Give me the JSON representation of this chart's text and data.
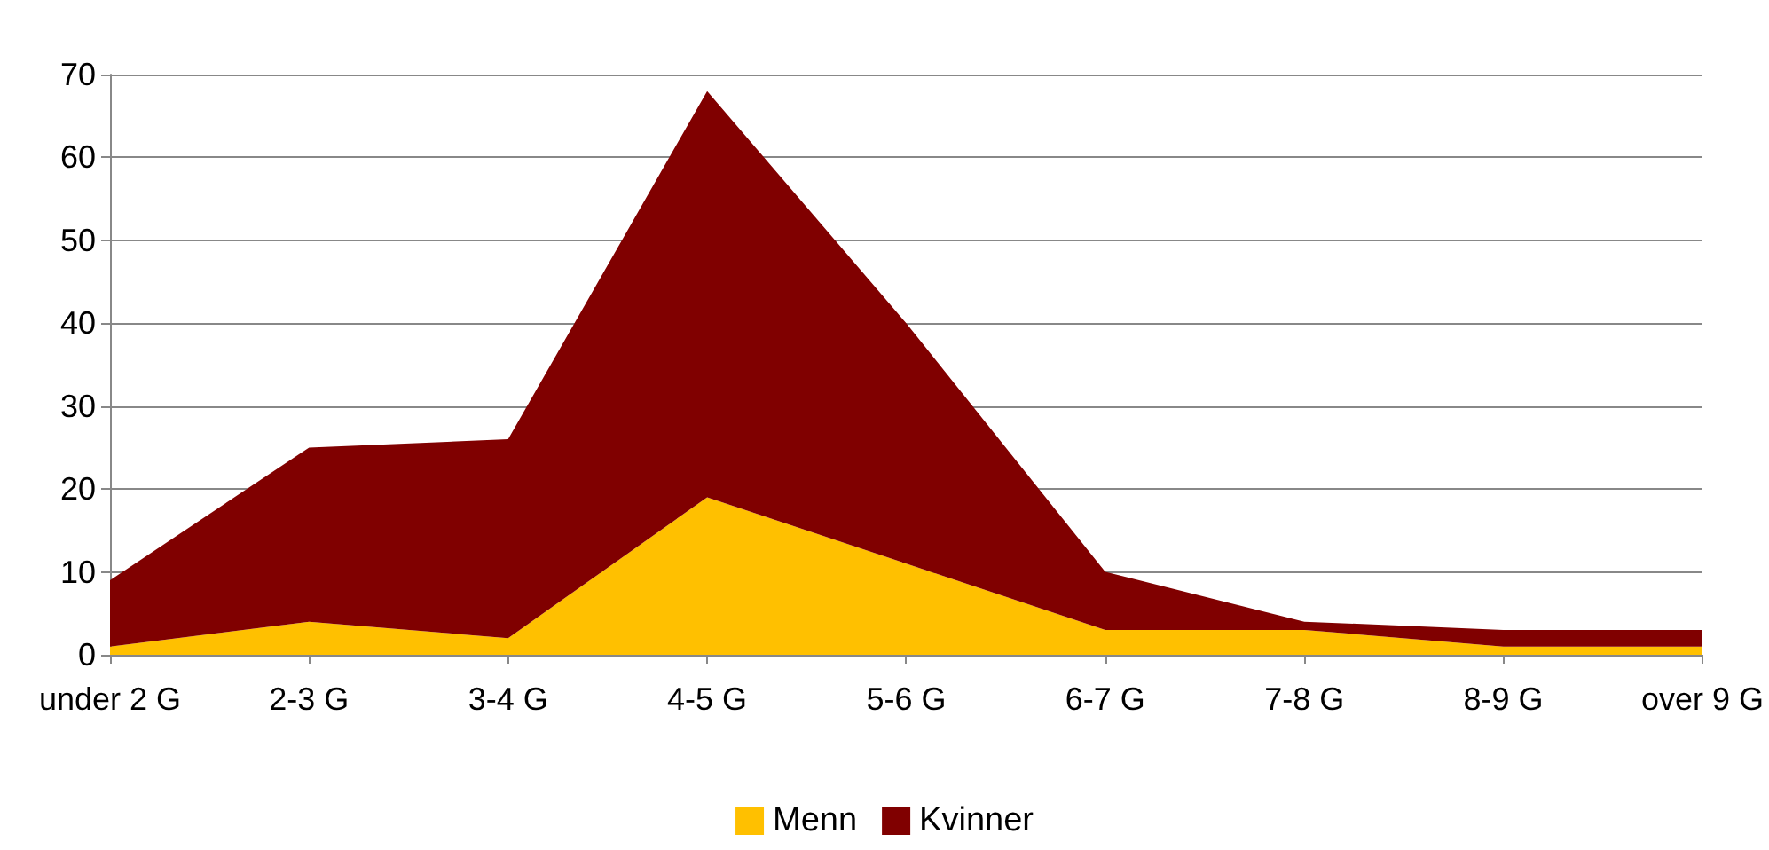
{
  "chart_data": {
    "type": "area",
    "stacked": true,
    "categories": [
      "under 2 G",
      "2-3 G",
      "3-4 G",
      "4-5 G",
      "5-6 G",
      "6-7 G",
      "7-8 G",
      "8-9 G",
      "over 9 G"
    ],
    "series": [
      {
        "name": "Menn",
        "color": "#ffc000",
        "values": [
          1,
          4,
          2,
          19,
          11,
          3,
          3,
          1,
          1
        ]
      },
      {
        "name": "Kvinner",
        "color": "#800000",
        "values": [
          8,
          21,
          24,
          49,
          29,
          7,
          1,
          2,
          2
        ]
      }
    ],
    "ylim": [
      0,
      70
    ],
    "yticks": [
      0,
      10,
      20,
      30,
      40,
      50,
      60,
      70
    ],
    "grid": "y",
    "legend": "bottom"
  }
}
